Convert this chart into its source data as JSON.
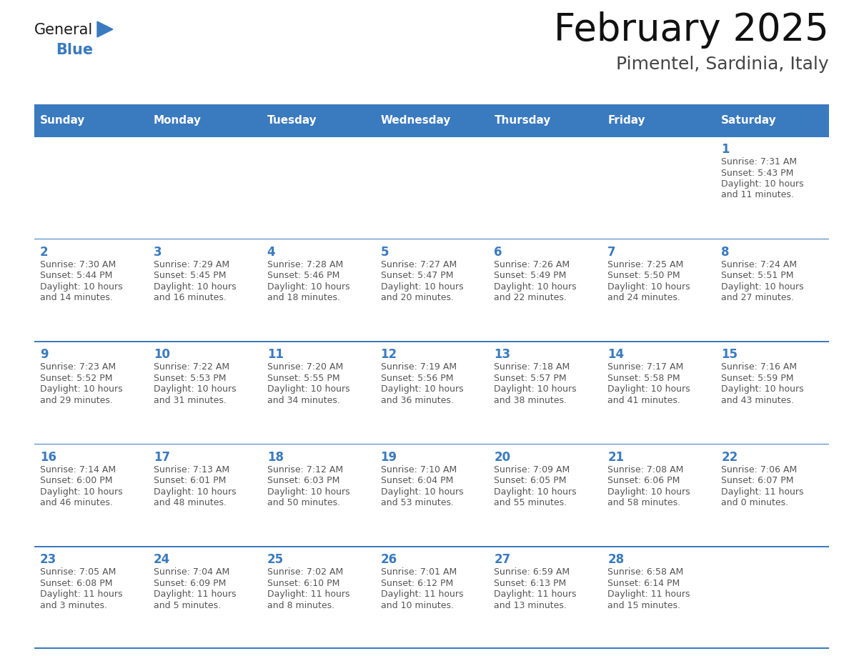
{
  "title": "February 2025",
  "subtitle": "Pimentel, Sardinia, Italy",
  "header_color": "#3a7abf",
  "header_text_color": "#ffffff",
  "cell_bg_color": "#ffffff",
  "day_number_color": "#3a7abf",
  "text_color": "#555555",
  "border_color": "#3a7abf",
  "days_of_week": [
    "Sunday",
    "Monday",
    "Tuesday",
    "Wednesday",
    "Thursday",
    "Friday",
    "Saturday"
  ],
  "weeks": [
    [
      {
        "day": "",
        "sunrise": "",
        "sunset": "",
        "daylight": ""
      },
      {
        "day": "",
        "sunrise": "",
        "sunset": "",
        "daylight": ""
      },
      {
        "day": "",
        "sunrise": "",
        "sunset": "",
        "daylight": ""
      },
      {
        "day": "",
        "sunrise": "",
        "sunset": "",
        "daylight": ""
      },
      {
        "day": "",
        "sunrise": "",
        "sunset": "",
        "daylight": ""
      },
      {
        "day": "",
        "sunrise": "",
        "sunset": "",
        "daylight": ""
      },
      {
        "day": "1",
        "sunrise": "7:31 AM",
        "sunset": "5:43 PM",
        "daylight": "10 hours\nand 11 minutes."
      }
    ],
    [
      {
        "day": "2",
        "sunrise": "7:30 AM",
        "sunset": "5:44 PM",
        "daylight": "10 hours\nand 14 minutes."
      },
      {
        "day": "3",
        "sunrise": "7:29 AM",
        "sunset": "5:45 PM",
        "daylight": "10 hours\nand 16 minutes."
      },
      {
        "day": "4",
        "sunrise": "7:28 AM",
        "sunset": "5:46 PM",
        "daylight": "10 hours\nand 18 minutes."
      },
      {
        "day": "5",
        "sunrise": "7:27 AM",
        "sunset": "5:47 PM",
        "daylight": "10 hours\nand 20 minutes."
      },
      {
        "day": "6",
        "sunrise": "7:26 AM",
        "sunset": "5:49 PM",
        "daylight": "10 hours\nand 22 minutes."
      },
      {
        "day": "7",
        "sunrise": "7:25 AM",
        "sunset": "5:50 PM",
        "daylight": "10 hours\nand 24 minutes."
      },
      {
        "day": "8",
        "sunrise": "7:24 AM",
        "sunset": "5:51 PM",
        "daylight": "10 hours\nand 27 minutes."
      }
    ],
    [
      {
        "day": "9",
        "sunrise": "7:23 AM",
        "sunset": "5:52 PM",
        "daylight": "10 hours\nand 29 minutes."
      },
      {
        "day": "10",
        "sunrise": "7:22 AM",
        "sunset": "5:53 PM",
        "daylight": "10 hours\nand 31 minutes."
      },
      {
        "day": "11",
        "sunrise": "7:20 AM",
        "sunset": "5:55 PM",
        "daylight": "10 hours\nand 34 minutes."
      },
      {
        "day": "12",
        "sunrise": "7:19 AM",
        "sunset": "5:56 PM",
        "daylight": "10 hours\nand 36 minutes."
      },
      {
        "day": "13",
        "sunrise": "7:18 AM",
        "sunset": "5:57 PM",
        "daylight": "10 hours\nand 38 minutes."
      },
      {
        "day": "14",
        "sunrise": "7:17 AM",
        "sunset": "5:58 PM",
        "daylight": "10 hours\nand 41 minutes."
      },
      {
        "day": "15",
        "sunrise": "7:16 AM",
        "sunset": "5:59 PM",
        "daylight": "10 hours\nand 43 minutes."
      }
    ],
    [
      {
        "day": "16",
        "sunrise": "7:14 AM",
        "sunset": "6:00 PM",
        "daylight": "10 hours\nand 46 minutes."
      },
      {
        "day": "17",
        "sunrise": "7:13 AM",
        "sunset": "6:01 PM",
        "daylight": "10 hours\nand 48 minutes."
      },
      {
        "day": "18",
        "sunrise": "7:12 AM",
        "sunset": "6:03 PM",
        "daylight": "10 hours\nand 50 minutes."
      },
      {
        "day": "19",
        "sunrise": "7:10 AM",
        "sunset": "6:04 PM",
        "daylight": "10 hours\nand 53 minutes."
      },
      {
        "day": "20",
        "sunrise": "7:09 AM",
        "sunset": "6:05 PM",
        "daylight": "10 hours\nand 55 minutes."
      },
      {
        "day": "21",
        "sunrise": "7:08 AM",
        "sunset": "6:06 PM",
        "daylight": "10 hours\nand 58 minutes."
      },
      {
        "day": "22",
        "sunrise": "7:06 AM",
        "sunset": "6:07 PM",
        "daylight": "11 hours\nand 0 minutes."
      }
    ],
    [
      {
        "day": "23",
        "sunrise": "7:05 AM",
        "sunset": "6:08 PM",
        "daylight": "11 hours\nand 3 minutes."
      },
      {
        "day": "24",
        "sunrise": "7:04 AM",
        "sunset": "6:09 PM",
        "daylight": "11 hours\nand 5 minutes."
      },
      {
        "day": "25",
        "sunrise": "7:02 AM",
        "sunset": "6:10 PM",
        "daylight": "11 hours\nand 8 minutes."
      },
      {
        "day": "26",
        "sunrise": "7:01 AM",
        "sunset": "6:12 PM",
        "daylight": "11 hours\nand 10 minutes."
      },
      {
        "day": "27",
        "sunrise": "6:59 AM",
        "sunset": "6:13 PM",
        "daylight": "11 hours\nand 13 minutes."
      },
      {
        "day": "28",
        "sunrise": "6:58 AM",
        "sunset": "6:14 PM",
        "daylight": "11 hours\nand 15 minutes."
      },
      {
        "day": "",
        "sunrise": "",
        "sunset": "",
        "daylight": ""
      }
    ]
  ],
  "logo_general_color": "#1a1a1a",
  "logo_blue_color": "#3a7abf",
  "fig_width": 11.88,
  "fig_height": 9.18
}
